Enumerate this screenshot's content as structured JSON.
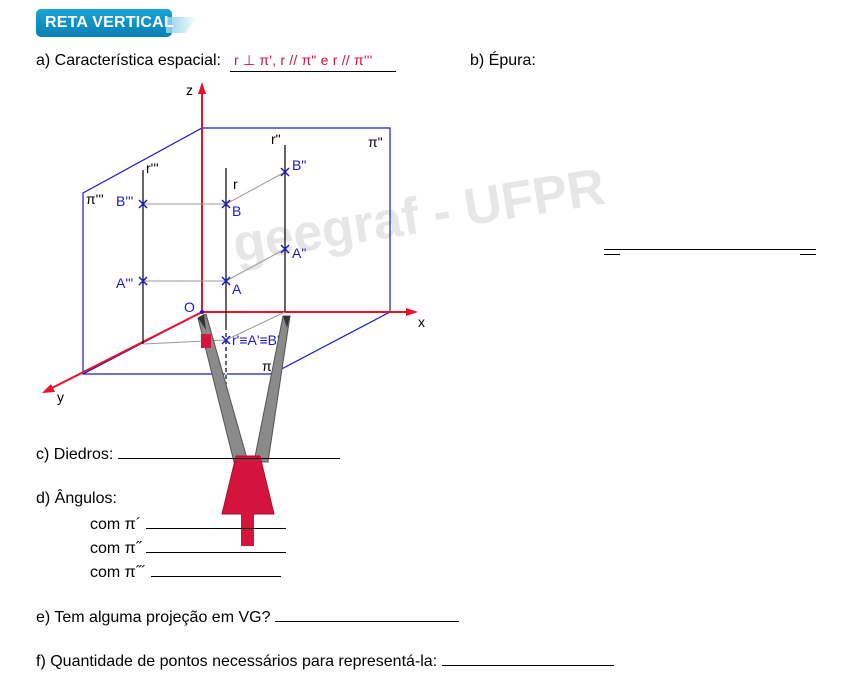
{
  "header": {
    "title": "RETA VERTICAL"
  },
  "questions": {
    "a_label": "a) Característica espacial:",
    "a_answer": "r ⊥ π', r // π\" e r // π'''",
    "b_label": "b) Épura:",
    "c_label": "c) Diedros:",
    "d_label": "d) Ângulos:",
    "d_items": [
      "com π´",
      "com π˝",
      "com π˝´"
    ],
    "e_label": "e) Tem alguma projeção em VG?",
    "f_label": "f) Quantidade de pontos necessários para representá-la:"
  },
  "watermark": "geegraf - UFPR",
  "figure": {
    "axes": {
      "x": "x",
      "y": "y",
      "z": "z",
      "origin": "O"
    },
    "planes": {
      "horizontal": "π",
      "frontal": "π\"",
      "profile": "π'''"
    },
    "lines": {
      "r": "r",
      "r_front": "r\"",
      "r_profile": "r'''",
      "r_top": "r'≡A'≡B'"
    },
    "points": {
      "A": "A",
      "B": "B",
      "A_front": "A\"",
      "B_front": "B\"",
      "A_profile": "A'''",
      "B_profile": "B'''"
    }
  },
  "colors": {
    "badge": "#0a7fb2",
    "answer": "#d4143c",
    "axes": "#e8102a",
    "planes": "#1a1acc",
    "points": "#1a1acc"
  }
}
